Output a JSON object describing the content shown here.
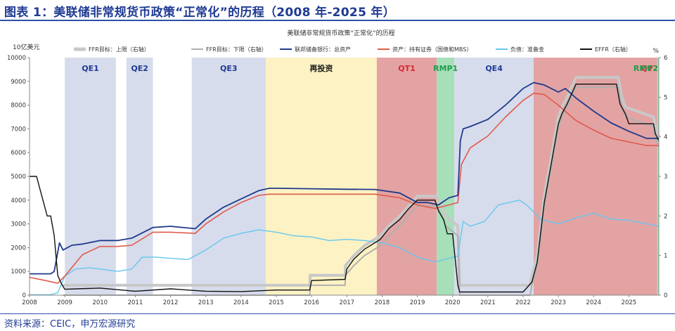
{
  "header": {
    "title": "图表 1：美联储非常规货币政策“正常化”的历程（2008 年-2025 年）"
  },
  "source": "资料来源：CEIC，申万宏源研究",
  "colors": {
    "qe_shade": "#d6dcec",
    "reinvest_shade": "#fdf2c4",
    "qt_shade": "#e3a3a3",
    "rmp_shade": "#a7dfb8",
    "qt_label": "#d8262f",
    "rmp_label": "#1e9e4e",
    "qe_label": "#1f3a93",
    "reinvest_label": "#1a1a1a",
    "total_assets": "#1f3a8a",
    "securities": "#e05a4a",
    "reserves": "#66c7ee",
    "effr": "#111111",
    "ffr_upper": "#c8c8c8",
    "ffr_lower": "#b0b0b0"
  },
  "chart_data": {
    "type": "line",
    "title": "美联储非常规货币政策“正常化”的历程",
    "left_unit": "10亿美元",
    "right_unit": "%",
    "xlim": [
      2008,
      2025.85
    ],
    "x_ticks": [
      2008,
      2009,
      2010,
      2011,
      2012,
      2013,
      2014,
      2015,
      2016,
      2017,
      2018,
      2019,
      2020,
      2021,
      2022,
      2023,
      2024,
      2025
    ],
    "x_tick_labels": [
      "2008",
      "2009",
      "2010",
      "2011",
      "2012",
      "2013",
      "2014",
      "2015",
      "2016",
      "2017",
      "2018",
      "2019",
      "2020",
      "2021",
      "2022",
      "2023",
      "2024",
      "2025"
    ],
    "ylim_left": [
      0,
      10000
    ],
    "y_ticks_left": [
      0,
      1000,
      2000,
      3000,
      4000,
      5000,
      6000,
      7000,
      8000,
      9000,
      10000
    ],
    "ylim_right": [
      0,
      6
    ],
    "y_ticks_right": [
      0,
      1,
      2,
      3,
      4,
      5,
      6
    ],
    "grid": false,
    "legend_position": "top",
    "legend": [
      {
        "key": "ffr_upper",
        "label": "FFR目标：上限（右轴）"
      },
      {
        "key": "ffr_lower",
        "label": "FFR目标：下限（右轴）"
      },
      {
        "key": "total_assets",
        "label": "联邦储备银行：总资产"
      },
      {
        "key": "securities",
        "label": "资产：持有证券（国债和MBS）"
      },
      {
        "key": "reserves",
        "label": "负债：准备金"
      },
      {
        "key": "effr",
        "label": "EFFR（右轴）"
      }
    ],
    "periods": [
      {
        "label": "QE1",
        "start": 2009.0,
        "end": 2010.45,
        "kind": "qe"
      },
      {
        "label": "QE2",
        "start": 2010.75,
        "end": 2011.5,
        "kind": "qe"
      },
      {
        "label": "QE3",
        "start": 2012.6,
        "end": 2014.7,
        "kind": "qe"
      },
      {
        "label": "再投资",
        "start": 2014.7,
        "end": 2017.85,
        "kind": "reinvest"
      },
      {
        "label": "QT1",
        "start": 2017.85,
        "end": 2019.55,
        "kind": "qt"
      },
      {
        "label": "RMP1",
        "start": 2019.55,
        "end": 2020.05,
        "kind": "rmp"
      },
      {
        "label": "QE4",
        "start": 2020.05,
        "end": 2022.3,
        "kind": "qe"
      },
      {
        "label": "QT2",
        "start": 2022.3,
        "end": 2025.8,
        "kind": "qt"
      },
      {
        "label": "RMP2",
        "start": 2025.8,
        "end": 2025.85,
        "kind": "rmp"
      }
    ],
    "series": [
      {
        "key": "total_assets",
        "name": "联邦储备银行：总资产",
        "axis": "left",
        "x": [
          2008.0,
          2008.6,
          2008.7,
          2008.85,
          2008.95,
          2009.2,
          2009.5,
          2010.0,
          2010.5,
          2010.9,
          2011.5,
          2012.0,
          2012.7,
          2013.0,
          2013.5,
          2014.0,
          2014.5,
          2014.8,
          2015.0,
          2016.0,
          2017.0,
          2017.8,
          2018.5,
          2019.0,
          2019.3,
          2019.6,
          2019.9,
          2020.15,
          2020.22,
          2020.3,
          2020.5,
          2021.0,
          2021.5,
          2022.0,
          2022.3,
          2022.6,
          2023.0,
          2023.2,
          2023.5,
          2024.0,
          2024.5,
          2025.0,
          2025.5,
          2025.85
        ],
        "y": [
          900,
          900,
          1000,
          2200,
          1900,
          2100,
          2150,
          2300,
          2300,
          2400,
          2850,
          2900,
          2800,
          3200,
          3700,
          4050,
          4400,
          4500,
          4500,
          4480,
          4460,
          4450,
          4300,
          3900,
          3900,
          3800,
          4100,
          4200,
          6500,
          7000,
          7100,
          7400,
          8000,
          8700,
          8950,
          8850,
          8550,
          8700,
          8300,
          7750,
          7250,
          6900,
          6600,
          6600
        ]
      },
      {
        "key": "securities",
        "name": "资产：持有证券（国债和MBS）",
        "axis": "left",
        "x": [
          2008.0,
          2008.5,
          2008.8,
          2009.0,
          2009.5,
          2010.0,
          2010.5,
          2010.9,
          2011.5,
          2012.0,
          2012.7,
          2013.0,
          2013.5,
          2014.0,
          2014.5,
          2014.8,
          2015.0,
          2016.0,
          2017.0,
          2017.8,
          2018.5,
          2019.0,
          2019.5,
          2019.9,
          2020.15,
          2020.25,
          2020.5,
          2021.0,
          2021.5,
          2022.0,
          2022.3,
          2022.6,
          2023.0,
          2023.5,
          2024.0,
          2024.5,
          2025.0,
          2025.5,
          2025.85
        ],
        "y": [
          750,
          600,
          500,
          800,
          1700,
          2050,
          2050,
          2100,
          2650,
          2650,
          2600,
          3000,
          3500,
          3900,
          4200,
          4250,
          4250,
          4250,
          4250,
          4250,
          4100,
          3800,
          3650,
          3800,
          3900,
          5500,
          6200,
          6700,
          7500,
          8200,
          8500,
          8450,
          8000,
          7350,
          6950,
          6600,
          6450,
          6300,
          6300
        ]
      },
      {
        "key": "reserves",
        "name": "负债：准备金",
        "axis": "left",
        "x": [
          2008.0,
          2008.6,
          2008.8,
          2009.0,
          2009.3,
          2009.7,
          2010.0,
          2010.5,
          2010.9,
          2011.2,
          2011.6,
          2012.0,
          2012.5,
          2013.0,
          2013.5,
          2014.0,
          2014.5,
          2015.0,
          2015.5,
          2016.0,
          2016.5,
          2017.0,
          2017.5,
          2018.0,
          2018.5,
          2019.0,
          2019.5,
          2019.9,
          2020.15,
          2020.3,
          2020.5,
          2020.9,
          2021.3,
          2021.9,
          2022.1,
          2022.5,
          2023.0,
          2023.5,
          2024.0,
          2024.5,
          2025.0,
          2025.5,
          2025.85
        ],
        "y": [
          20,
          20,
          100,
          800,
          1100,
          1150,
          1100,
          1000,
          1100,
          1600,
          1600,
          1550,
          1500,
          1900,
          2400,
          2600,
          2750,
          2650,
          2500,
          2450,
          2300,
          2350,
          2300,
          2200,
          2000,
          1600,
          1400,
          1550,
          1650,
          3100,
          2900,
          3100,
          3800,
          4000,
          3800,
          3200,
          3000,
          3250,
          3450,
          3200,
          3150,
          3000,
          2900
        ]
      },
      {
        "key": "effr",
        "name": "EFFR（右轴）",
        "axis": "right",
        "x": [
          2008.0,
          2008.05,
          2008.2,
          2008.5,
          2008.6,
          2008.7,
          2008.8,
          2008.9,
          2009.0,
          2010.0,
          2011.0,
          2012.0,
          2013.0,
          2014.0,
          2015.0,
          2015.95,
          2016.0,
          2016.95,
          2017.0,
          2017.2,
          2017.5,
          2017.95,
          2018.2,
          2018.5,
          2018.75,
          2019.0,
          2019.5,
          2019.6,
          2019.75,
          2019.85,
          2020.0,
          2020.15,
          2020.2,
          2021.0,
          2022.0,
          2022.25,
          2022.4,
          2022.5,
          2022.6,
          2022.75,
          2022.9,
          2023.0,
          2023.1,
          2023.25,
          2023.5,
          2024.0,
          2024.65,
          2024.75,
          2024.9,
          2025.0,
          2025.7,
          2025.75,
          2025.85
        ],
        "y": [
          3.0,
          3.0,
          3.0,
          2.0,
          2.0,
          1.5,
          0.5,
          0.3,
          0.15,
          0.18,
          0.1,
          0.16,
          0.1,
          0.09,
          0.13,
          0.13,
          0.37,
          0.4,
          0.66,
          0.91,
          1.16,
          1.41,
          1.69,
          1.91,
          2.18,
          2.4,
          2.4,
          2.13,
          1.9,
          1.55,
          1.55,
          0.25,
          0.08,
          0.08,
          0.08,
          0.33,
          0.83,
          1.58,
          2.33,
          3.08,
          3.83,
          4.33,
          4.58,
          4.83,
          5.33,
          5.33,
          5.33,
          4.83,
          4.58,
          4.33,
          4.33,
          4.08,
          3.9
        ]
      },
      {
        "key": "ffr_upper",
        "name": "FFR目标：上限（右轴）",
        "axis": "right",
        "x": [
          2008.95,
          2015.95,
          2015.96,
          2016.95,
          2016.96,
          2017.2,
          2017.5,
          2017.95,
          2018.2,
          2018.5,
          2018.75,
          2019.0,
          2019.55,
          2019.7,
          2019.8,
          2020.15,
          2020.2,
          2022.2,
          2022.25,
          2022.4,
          2022.5,
          2022.6,
          2022.75,
          2022.9,
          2023.0,
          2023.1,
          2023.25,
          2023.5,
          2024.7,
          2024.8,
          2024.9,
          2025.7,
          2025.75,
          2025.85
        ],
        "y": [
          0.25,
          0.25,
          0.5,
          0.5,
          0.75,
          1.0,
          1.25,
          1.5,
          1.75,
          2.0,
          2.25,
          2.5,
          2.5,
          2.25,
          2.0,
          1.75,
          0.25,
          0.25,
          0.5,
          1.0,
          1.75,
          2.5,
          3.25,
          4.0,
          4.5,
          4.75,
          5.0,
          5.5,
          5.5,
          5.0,
          4.75,
          4.5,
          4.25,
          4.0
        ]
      },
      {
        "key": "ffr_lower",
        "name": "FFR目标：下限（右轴）",
        "axis": "right",
        "x": [
          2008.95,
          2015.95,
          2015.96,
          2016.95,
          2016.96,
          2017.2,
          2017.5,
          2017.95,
          2018.2,
          2018.5,
          2018.75,
          2019.0,
          2019.55,
          2019.7,
          2019.8,
          2020.15,
          2020.2,
          2022.2,
          2022.25,
          2022.4,
          2022.5,
          2022.6,
          2022.75,
          2022.9,
          2023.0,
          2023.1,
          2023.25,
          2023.5,
          2024.7,
          2024.8,
          2024.9,
          2025.7,
          2025.75,
          2025.85
        ],
        "y": [
          0.0,
          0.0,
          0.25,
          0.25,
          0.5,
          0.75,
          1.0,
          1.25,
          1.5,
          1.75,
          2.0,
          2.25,
          2.25,
          2.0,
          1.75,
          1.5,
          0.0,
          0.0,
          0.25,
          0.75,
          1.5,
          2.25,
          3.0,
          3.75,
          4.25,
          4.5,
          4.75,
          5.25,
          5.25,
          4.75,
          4.5,
          4.25,
          4.0,
          3.75
        ]
      }
    ]
  }
}
